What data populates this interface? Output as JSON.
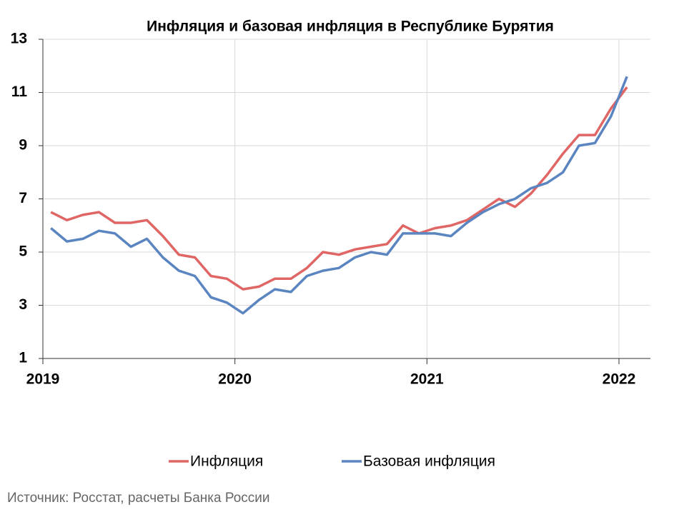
{
  "chart_data": {
    "type": "line",
    "title": "Инфляция и базовая инфляция в Республике Бурятия",
    "categories": [
      "2019",
      null,
      null,
      null,
      null,
      null,
      null,
      null,
      null,
      null,
      null,
      null,
      "2020",
      null,
      null,
      null,
      null,
      null,
      null,
      null,
      null,
      null,
      null,
      null,
      "2021",
      null,
      null,
      null,
      null,
      null,
      null,
      null,
      null,
      null,
      null,
      null,
      "2022"
    ],
    "series": [
      {
        "name": "Инфляция",
        "color": "#e06666",
        "values": [
          6.5,
          6.2,
          6.4,
          6.5,
          6.1,
          6.1,
          6.2,
          5.6,
          4.9,
          4.8,
          4.1,
          4.0,
          3.6,
          3.7,
          4.0,
          4.0,
          4.4,
          5.0,
          4.9,
          5.1,
          5.2,
          5.3,
          6.0,
          5.7,
          5.9,
          6.0,
          6.2,
          6.6,
          7.0,
          6.7,
          7.2,
          7.9,
          8.7,
          9.4,
          9.4,
          10.4,
          11.2
        ]
      },
      {
        "name": "Базовая инфляция",
        "color": "#5b85c0",
        "values": [
          5.9,
          5.4,
          5.5,
          5.8,
          5.7,
          5.2,
          5.5,
          4.8,
          4.3,
          4.1,
          3.3,
          3.1,
          2.7,
          3.2,
          3.6,
          3.5,
          4.1,
          4.3,
          4.4,
          4.8,
          5.0,
          4.9,
          5.7,
          5.7,
          5.7,
          5.6,
          6.1,
          6.5,
          6.8,
          7.0,
          7.4,
          7.6,
          8.0,
          9.0,
          9.1,
          10.1,
          11.6
        ]
      }
    ],
    "ylim": [
      1,
      13
    ],
    "yticks": [
      1,
      3,
      5,
      7,
      9,
      11,
      13
    ],
    "grid": true,
    "legend": "bottom",
    "source": "Источник: Росстат, расчеты Банка России"
  }
}
